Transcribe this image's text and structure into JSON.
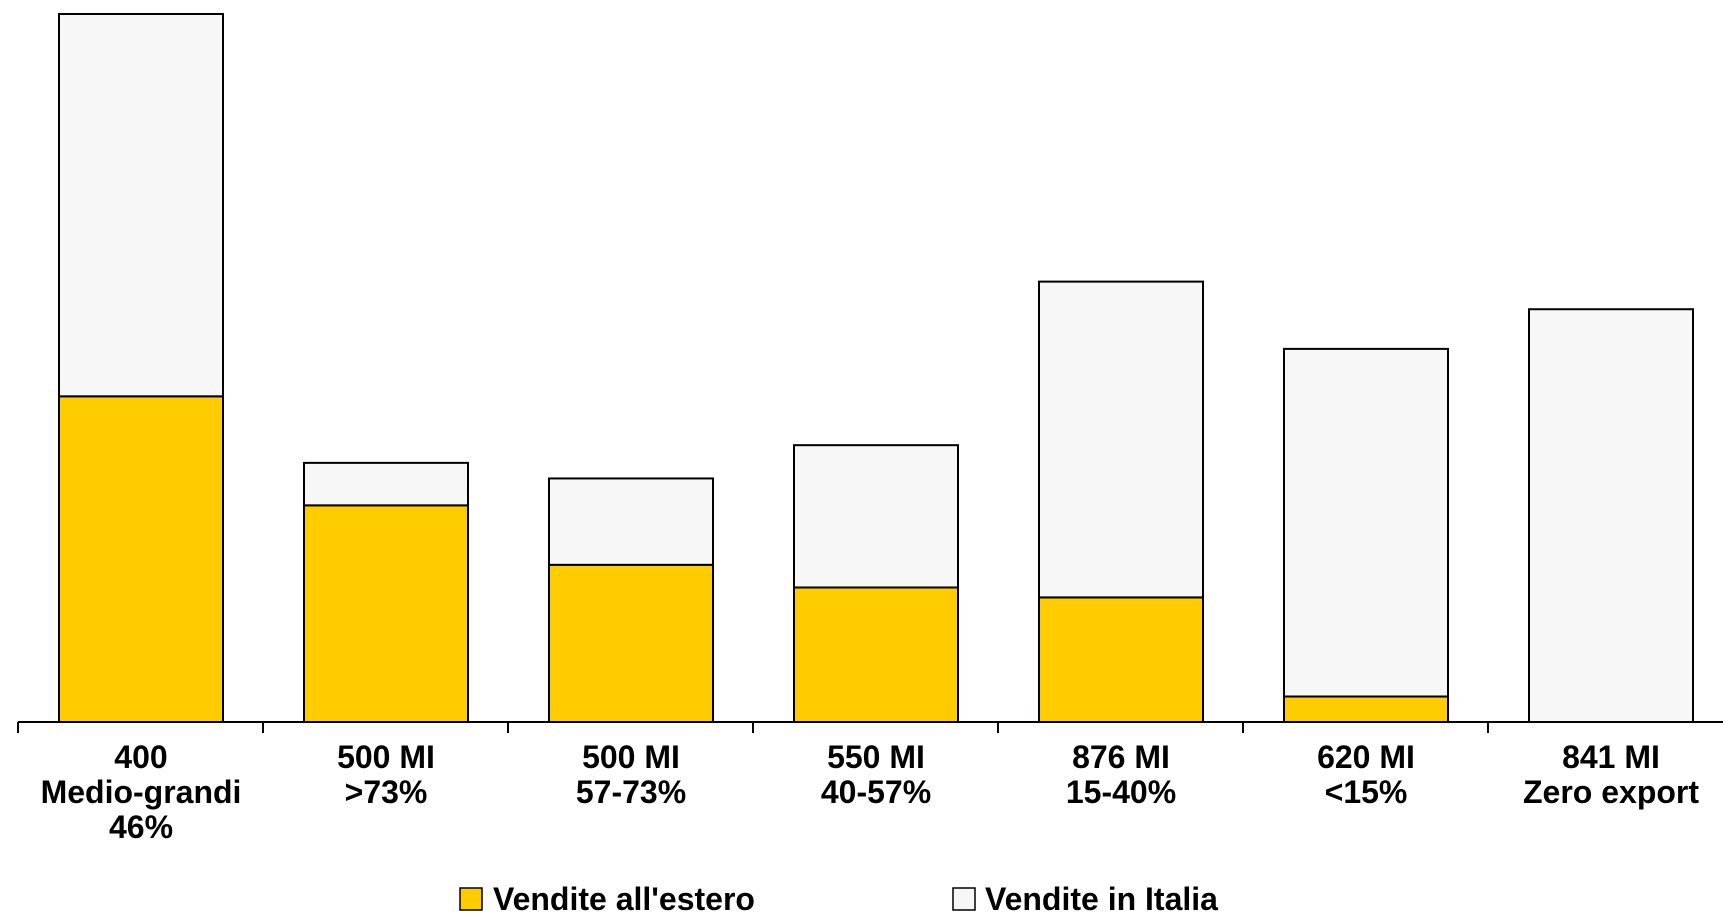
{
  "chart_data": {
    "type": "bar",
    "stacked": true,
    "categories": [
      [
        "400",
        "Medio-grandi",
        "46%"
      ],
      [
        "500 MI",
        ">73%"
      ],
      [
        "500 MI",
        "57-73%"
      ],
      [
        "550 MI",
        "40-57%"
      ],
      [
        "876 MI",
        "15-40%"
      ],
      [
        "620 MI",
        "<15%"
      ],
      [
        "841 MI",
        "Zero export"
      ]
    ],
    "series": [
      {
        "name": "Vendite all'estero",
        "color": "#FFCC00",
        "values": [
          46,
          30.6,
          22.2,
          19.0,
          17.6,
          3.6,
          0
        ]
      },
      {
        "name": "Vendite in Italia",
        "color": "#F7F7F7",
        "values": [
          54,
          6.0,
          12.2,
          20.1,
          44.6,
          49.1,
          58.3
        ]
      }
    ],
    "ylim": [
      0,
      100
    ],
    "legend_position": "bottom-center",
    "grid": false
  }
}
